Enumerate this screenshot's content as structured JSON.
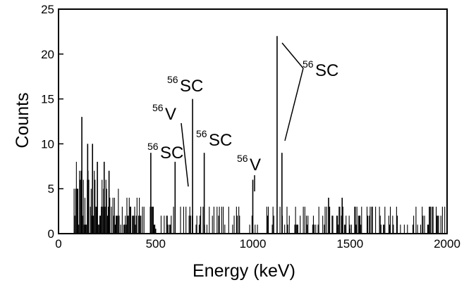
{
  "chart_data": {
    "type": "bar",
    "title": "",
    "xlabel": "Energy (keV)",
    "ylabel": "Counts",
    "xlim": [
      0,
      2000
    ],
    "ylim": [
      0,
      25
    ],
    "xticks": [
      0,
      500,
      1000,
      1500,
      2000
    ],
    "yticks": [
      0,
      5,
      10,
      15,
      20,
      25
    ],
    "grid": false,
    "background_bins": {
      "note_range_keV": [
        80,
        2000
      ],
      "low_energy_region_keV": [
        80,
        420
      ],
      "low_energy_typical_max": 8,
      "high_energy_typical_max": 3
    },
    "peaks": [
      {
        "x": 120,
        "y": 13
      },
      {
        "x": 150,
        "y": 10
      },
      {
        "x": 175,
        "y": 10
      },
      {
        "x": 200,
        "y": 8
      },
      {
        "x": 235,
        "y": 8
      },
      {
        "x": 260,
        "y": 7
      },
      {
        "x": 475,
        "y": 9
      },
      {
        "x": 600,
        "y": 8
      },
      {
        "x": 690,
        "y": 15
      },
      {
        "x": 750,
        "y": 9
      },
      {
        "x": 1000,
        "y": 6
      },
      {
        "x": 1125,
        "y": 22
      },
      {
        "x": 1150,
        "y": 9
      },
      {
        "x": 1390,
        "y": 4
      },
      {
        "x": 1460,
        "y": 4
      }
    ],
    "annotations": [
      {
        "mass": "56",
        "symbol": "SC"
      },
      {
        "mass": "56",
        "symbol": "V"
      },
      {
        "mass": "56",
        "symbol": "SC"
      },
      {
        "mass": "56",
        "symbol": "SC"
      },
      {
        "mass": "56",
        "symbol": "V"
      }
    ],
    "colors": {
      "ink": "#000000",
      "background": "#ffffff"
    }
  }
}
